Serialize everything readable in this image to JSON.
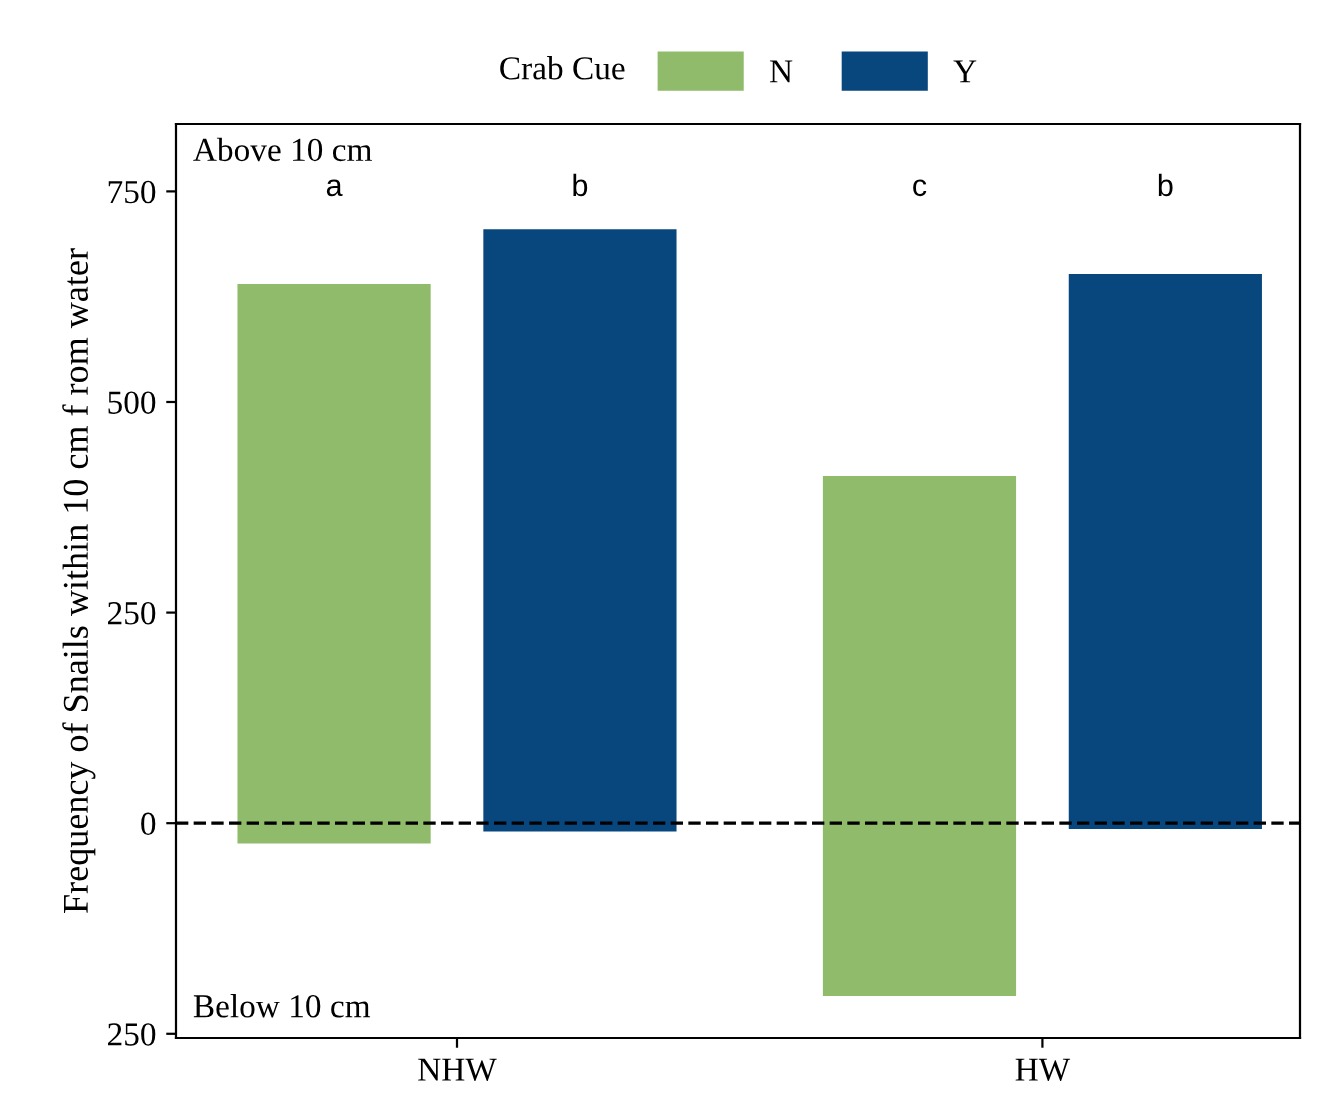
{
  "chart_data": {
    "type": "bar",
    "ylabel": "Frequency of Snails within 10 cm f rom water",
    "legend_title": "Crab Cue",
    "categories": [
      "NHW",
      "HW"
    ],
    "series": [
      {
        "name": "N",
        "color": "#8fbb6a",
        "base": [
          -24,
          -205
        ],
        "values": [
          664,
          617
        ]
      },
      {
        "name": "Y",
        "color": "#08467e",
        "base": [
          -10,
          -7
        ],
        "values": [
          715,
          659
        ]
      }
    ],
    "ylim": [
      -255,
      830
    ],
    "yticks": [
      {
        "value": -250,
        "label": "250"
      },
      0,
      250,
      500,
      750
    ],
    "ref_lines": [
      {
        "axis": "y",
        "value": 0,
        "label": null,
        "color": "#000000",
        "line_style": "dashed"
      }
    ],
    "annotations": [
      "Above 10 cm",
      "Below 10 cm",
      "a",
      "b",
      "c",
      "b"
    ],
    "legend": "top",
    "grid": false
  }
}
